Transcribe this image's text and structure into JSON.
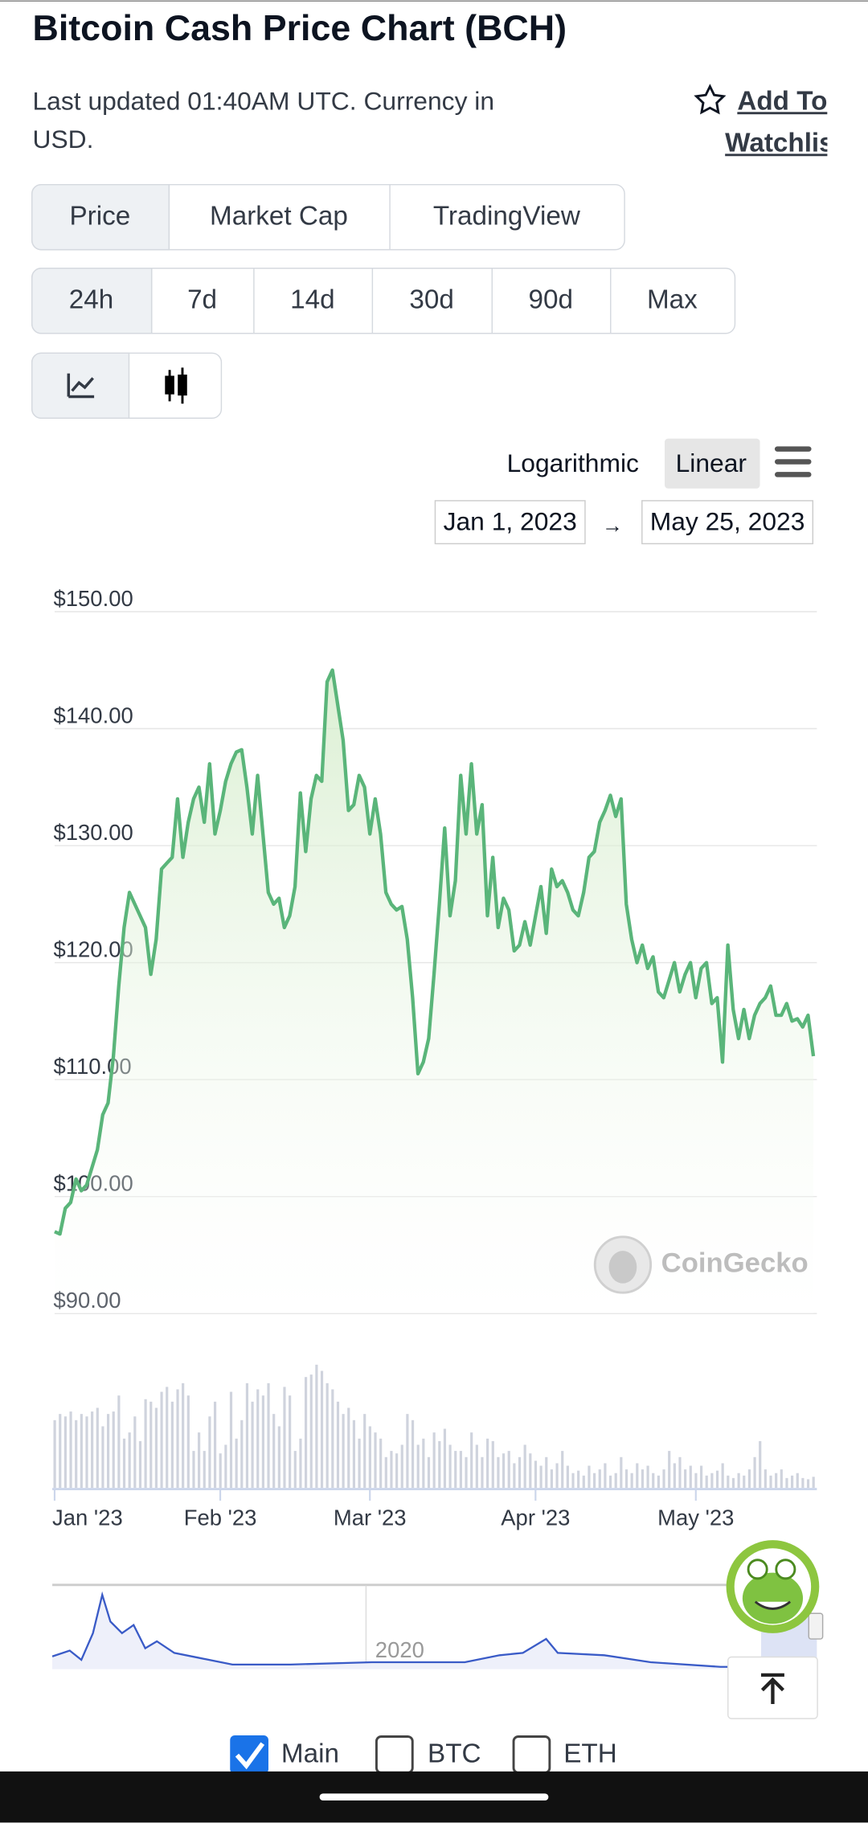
{
  "header": {
    "title": "Bitcoin Cash Price Chart (BCH)",
    "updated": "Last updated 01:40AM UTC. Currency in USD.",
    "watchlist": "Add To Watchlist"
  },
  "tabs": [
    "Price",
    "Market Cap",
    "TradingView"
  ],
  "ranges": [
    "24h",
    "7d",
    "14d",
    "30d",
    "90d",
    "Max"
  ],
  "scale_options": [
    "Logarithmic",
    "Linear"
  ],
  "date_from": "Jan 1, 2023",
  "date_arrow": "→",
  "date_to": "May 25, 2023",
  "watermark": "CoinGecko",
  "navigator_label": "2020",
  "compare": [
    "Main",
    "BTC",
    "ETH"
  ],
  "chart_data": [
    {
      "type": "line",
      "color": "#5ab57a",
      "grid": true,
      "ylim": [
        90,
        150
      ],
      "xlim": [
        0,
        142
      ],
      "yticks": [
        {
          "value": 90,
          "label": "$90.00"
        },
        {
          "value": 100,
          "label": "$100.00"
        },
        {
          "value": 110,
          "label": "$110.00"
        },
        {
          "value": 120,
          "label": "$120.00"
        },
        {
          "value": 130,
          "label": "$130.00"
        },
        {
          "value": 140,
          "label": "$140.00"
        },
        {
          "value": 150,
          "label": "$150.00"
        }
      ],
      "values": [
        97,
        96.8,
        99,
        99.5,
        101.5,
        100.5,
        101,
        102.5,
        104,
        107,
        108,
        112,
        118,
        123,
        126,
        125,
        124,
        123,
        119,
        122,
        128,
        128.5,
        129,
        134,
        129,
        132,
        134,
        135,
        132,
        137,
        131,
        133,
        135.5,
        137,
        138,
        138.2,
        135,
        131,
        136,
        131,
        126,
        125,
        125.5,
        123,
        124,
        126.5,
        134.5,
        129.5,
        134,
        136,
        135.5,
        144,
        145,
        142,
        139,
        133,
        133.5,
        136,
        135,
        131,
        134,
        131,
        126,
        125,
        124.5,
        124.8,
        122,
        117,
        110.5,
        111.5,
        113.5,
        119,
        125,
        131.5,
        124,
        127,
        136,
        131,
        137,
        131,
        133.5,
        124,
        129,
        123,
        125.5,
        124.5,
        121,
        121.5,
        123.5,
        121.5,
        124,
        126.5,
        122.5,
        128,
        126.5,
        127,
        126,
        124.5,
        124,
        126,
        129,
        129.5,
        132,
        133,
        134.3,
        132.5,
        134,
        125,
        122,
        120,
        121.5,
        119.5,
        120.5,
        117.5,
        117,
        118.5,
        120,
        117.5,
        119,
        120,
        117,
        119.5,
        120,
        116.5,
        117,
        111.5,
        121.5,
        116,
        113.5,
        116,
        113.5,
        115.5,
        116.5,
        117,
        118,
        115.5,
        115.5,
        116.5,
        115,
        115.2,
        114.5,
        115.5,
        112
      ]
    },
    {
      "type": "bar",
      "color": "#cfd3dd",
      "xlim": [
        0,
        142
      ],
      "xticks": [
        {
          "value": 0,
          "label": "Jan '23"
        },
        {
          "value": 31,
          "label": "Feb '23"
        },
        {
          "value": 59,
          "label": "Mar '23"
        },
        {
          "value": 90,
          "label": "Apr '23"
        },
        {
          "value": 120,
          "label": "May '23"
        }
      ],
      "values": [
        55,
        60,
        58,
        62,
        55,
        60,
        58,
        62,
        65,
        50,
        60,
        62,
        75,
        40,
        45,
        58,
        38,
        72,
        70,
        65,
        78,
        82,
        70,
        80,
        85,
        75,
        30,
        45,
        30,
        58,
        70,
        28,
        35,
        78,
        40,
        55,
        85,
        70,
        80,
        75,
        85,
        60,
        50,
        82,
        75,
        30,
        40,
        90,
        92,
        100,
        95,
        85,
        80,
        70,
        60,
        65,
        55,
        40,
        60,
        50,
        45,
        40,
        25,
        30,
        28,
        35,
        60,
        55,
        35,
        40,
        25,
        45,
        38,
        48,
        35,
        30,
        30,
        25,
        45,
        35,
        25,
        40,
        38,
        25,
        28,
        30,
        20,
        25,
        35,
        28,
        22,
        18,
        25,
        15,
        20,
        30,
        18,
        12,
        14,
        10,
        18,
        12,
        15,
        20,
        10,
        12,
        25,
        15,
        12,
        20,
        15,
        18,
        12,
        10,
        15,
        30,
        20,
        25,
        15,
        18,
        12,
        18,
        10,
        12,
        14,
        20,
        10,
        8,
        12,
        10,
        15,
        25,
        38,
        15,
        10,
        12,
        15,
        8,
        10,
        12,
        8,
        7,
        9
      ]
    }
  ]
}
